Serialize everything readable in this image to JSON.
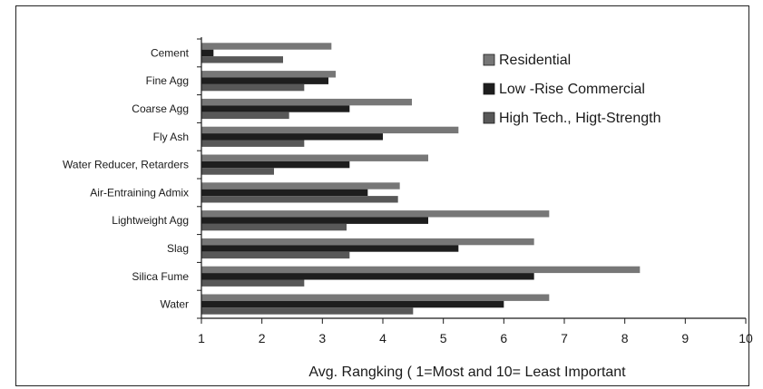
{
  "chart_data": {
    "type": "bar",
    "orientation": "horizontal",
    "categories": [
      "Cement",
      "Fine Agg",
      "Coarse Agg",
      "Fly Ash",
      "Water Reducer, Retarders",
      "Air-Entraining Admix",
      "Lightweight Agg",
      "Slag",
      "Silica Fume",
      "Water"
    ],
    "series": [
      {
        "name": "Residential",
        "color": "#777777",
        "values": [
          3.15,
          3.22,
          4.48,
          5.25,
          4.75,
          4.28,
          6.75,
          6.5,
          8.25,
          6.75
        ]
      },
      {
        "name": "Low -Rise Commercial",
        "color": "#1e1e1e",
        "values": [
          1.2,
          3.1,
          3.45,
          4.0,
          3.45,
          3.75,
          4.75,
          5.25,
          6.5,
          6.0
        ]
      },
      {
        "name": "High Tech., Higt-Strength",
        "color": "#585858",
        "values": [
          2.35,
          2.7,
          2.45,
          2.7,
          2.2,
          4.25,
          3.4,
          3.45,
          2.7,
          4.5
        ]
      }
    ],
    "xlabel": "Avg. Rangking ( 1=Most and 10= Least Important",
    "xlim": [
      1,
      10
    ],
    "xticks": [
      1,
      2,
      3,
      4,
      5,
      6,
      7,
      8,
      9,
      10
    ],
    "legend_position": "top-right",
    "grid": false
  }
}
